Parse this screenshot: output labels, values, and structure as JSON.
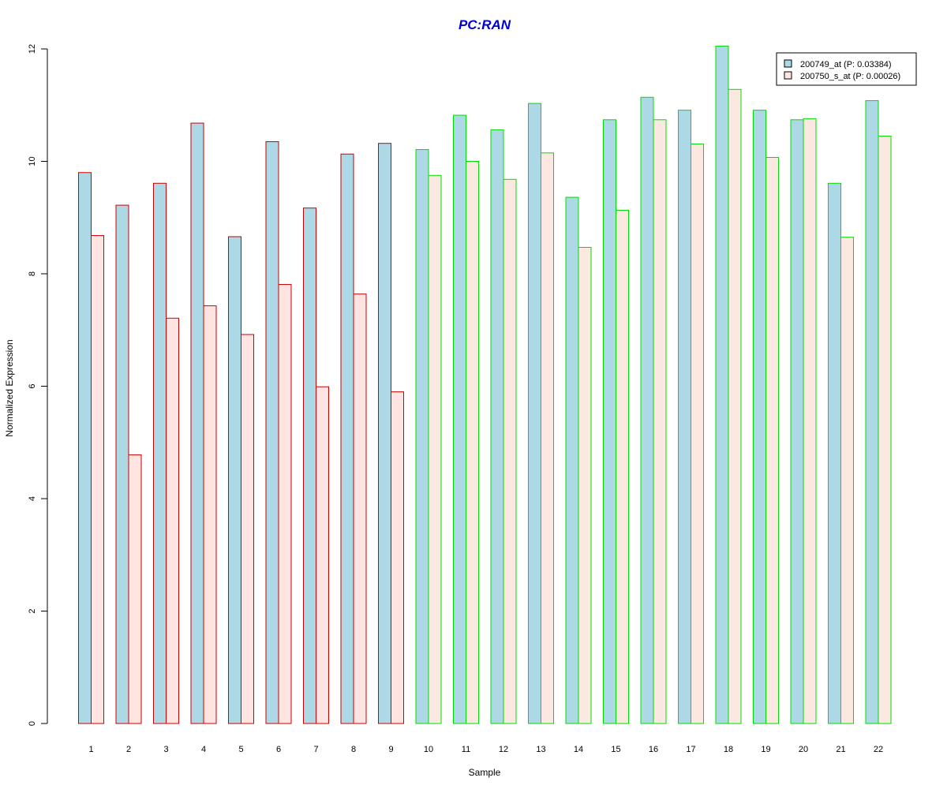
{
  "chart_data": {
    "type": "bar",
    "title": "PC:RAN",
    "xlabel": "Sample",
    "ylabel": "Normalized Expression",
    "ylim": [
      0,
      12
    ],
    "yticks": [
      0,
      2,
      4,
      6,
      8,
      10,
      12
    ],
    "grid": false,
    "legend_position": "top-right",
    "categories": [
      "1",
      "2",
      "3",
      "4",
      "5",
      "6",
      "7",
      "8",
      "9",
      "10",
      "11",
      "12",
      "13",
      "14",
      "15",
      "16",
      "17",
      "18",
      "19",
      "20",
      "21",
      "22"
    ],
    "series": [
      {
        "name": "200749_at (P: 0.03384)",
        "fill": "#add8e6",
        "values": [
          9.8,
          9.22,
          9.61,
          10.68,
          8.66,
          10.35,
          9.17,
          10.13,
          10.32,
          10.21,
          10.82,
          10.56,
          11.03,
          9.36,
          10.74,
          11.14,
          10.91,
          12.05,
          10.91,
          10.74,
          9.61,
          11.08
        ]
      },
      {
        "name": "200750_s_at (P: 0.00026)",
        "fill_by_group": [
          "#ffe4e1",
          "#fbe9e1"
        ],
        "values": [
          8.68,
          4.78,
          7.21,
          7.43,
          6.92,
          7.81,
          5.99,
          7.64,
          5.9,
          9.75,
          10.0,
          9.68,
          10.15,
          8.47,
          9.13,
          10.74,
          10.31,
          11.28,
          10.07,
          10.76,
          8.65,
          10.45
        ]
      }
    ],
    "group_border_colors": [
      "#cc0000",
      "#00dd00"
    ],
    "group_split_after_category": 9
  },
  "colors": {
    "title": "#0000cc",
    "legend_border": "#000000"
  }
}
